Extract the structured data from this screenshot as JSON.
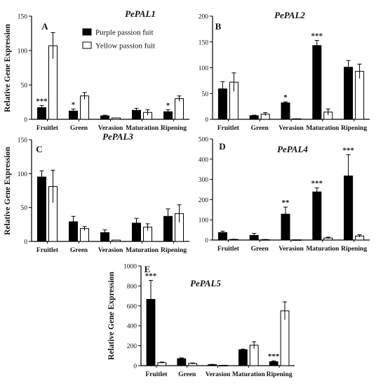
{
  "legend": [
    {
      "name": "Purple passion fuit",
      "color": "#000000"
    },
    {
      "name": "Yellow passion fuit",
      "color": "#ffffff"
    }
  ],
  "chart_data": [
    {
      "type": "bar",
      "panel": "A",
      "title": "PePAL1",
      "ylabel": "Relative Gene Expression",
      "ylim": [
        0,
        150
      ],
      "yticks": [
        0,
        50,
        100,
        150
      ],
      "categories": [
        "Fruitlet",
        "Green",
        "Verasion",
        "Maturation",
        "Ripening"
      ],
      "series": [
        {
          "name": "Purple passion fuit",
          "values": [
            17,
            12,
            5,
            13,
            11
          ],
          "errors": [
            3,
            3,
            1,
            3,
            3
          ]
        },
        {
          "name": "Yellow passion fuit",
          "values": [
            107,
            34,
            2,
            10,
            30
          ],
          "errors": [
            19,
            5,
            0,
            4,
            4
          ]
        }
      ],
      "significance": [
        "***",
        "*",
        "",
        "",
        "*"
      ]
    },
    {
      "type": "bar",
      "panel": "B",
      "title": "PePAL2",
      "ylabel": "",
      "ylim": [
        0,
        200
      ],
      "yticks": [
        0,
        50,
        100,
        150,
        200
      ],
      "categories": [
        "Fruitlet",
        "Green",
        "Verasion",
        "Maturation",
        "Ripening"
      ],
      "series": [
        {
          "name": "Purple passion fuit",
          "values": [
            59,
            7,
            32,
            143,
            101
          ],
          "errors": [
            14,
            1,
            2,
            10,
            13
          ]
        },
        {
          "name": "Yellow passion fuit",
          "values": [
            72,
            10,
            1,
            14,
            93
          ],
          "errors": [
            18,
            3,
            0,
            6,
            14
          ]
        }
      ],
      "significance": [
        "",
        "",
        "*",
        "***",
        ""
      ]
    },
    {
      "type": "bar",
      "panel": "C",
      "title": "PePAL3",
      "ylabel": "Relative Gene Expression",
      "ylim": [
        0,
        150
      ],
      "yticks": [
        0,
        50,
        100,
        150
      ],
      "categories": [
        "Fruitlet",
        "Green",
        "Verasion",
        "Maturation",
        "Ripening"
      ],
      "series": [
        {
          "name": "Purple passion fuit",
          "values": [
            95,
            29,
            13,
            27,
            37
          ],
          "errors": [
            9,
            8,
            4,
            7,
            11
          ]
        },
        {
          "name": "Yellow passion fuit",
          "values": [
            81,
            19,
            2,
            21,
            41
          ],
          "errors": [
            24,
            3,
            0,
            5,
            13
          ]
        }
      ],
      "significance": [
        "",
        "",
        "",
        "",
        ""
      ]
    },
    {
      "type": "bar",
      "panel": "D",
      "title": "PePAL4",
      "ylabel": "",
      "ylim": [
        0,
        500
      ],
      "yticks": [
        0,
        100,
        200,
        300,
        400,
        500
      ],
      "categories": [
        "Fruitlet",
        "Green",
        "Verasion",
        "Maturation",
        "Ripening"
      ],
      "series": [
        {
          "name": "Purple passion fuit",
          "values": [
            37,
            23,
            128,
            238,
            317
          ],
          "errors": [
            7,
            10,
            35,
            20,
            105
          ]
        },
        {
          "name": "Yellow passion fuit",
          "values": [
            3,
            2,
            1,
            10,
            20
          ],
          "errors": [
            1,
            1,
            0,
            4,
            6
          ]
        }
      ],
      "significance": [
        "",
        "",
        "**",
        "***",
        "***"
      ]
    },
    {
      "type": "bar",
      "panel": "E",
      "title": "PePAL5",
      "ylabel": "Relative Gene Expression",
      "ylim": [
        0,
        1000
      ],
      "yticks": [
        0,
        200,
        400,
        600,
        800,
        1000
      ],
      "categories": [
        "Fruitlet",
        "Green",
        "Verasion",
        "Maturation",
        "Ripening"
      ],
      "series": [
        {
          "name": "Purple passion fuit",
          "values": [
            665,
            70,
            10,
            160,
            40
          ],
          "errors": [
            190,
            8,
            3,
            6,
            8
          ]
        },
        {
          "name": "Yellow passion fuit",
          "values": [
            30,
            22,
            3,
            205,
            550
          ],
          "errors": [
            6,
            5,
            1,
            35,
            90
          ]
        }
      ],
      "significance": [
        "***",
        "",
        "",
        "",
        "***"
      ]
    }
  ]
}
